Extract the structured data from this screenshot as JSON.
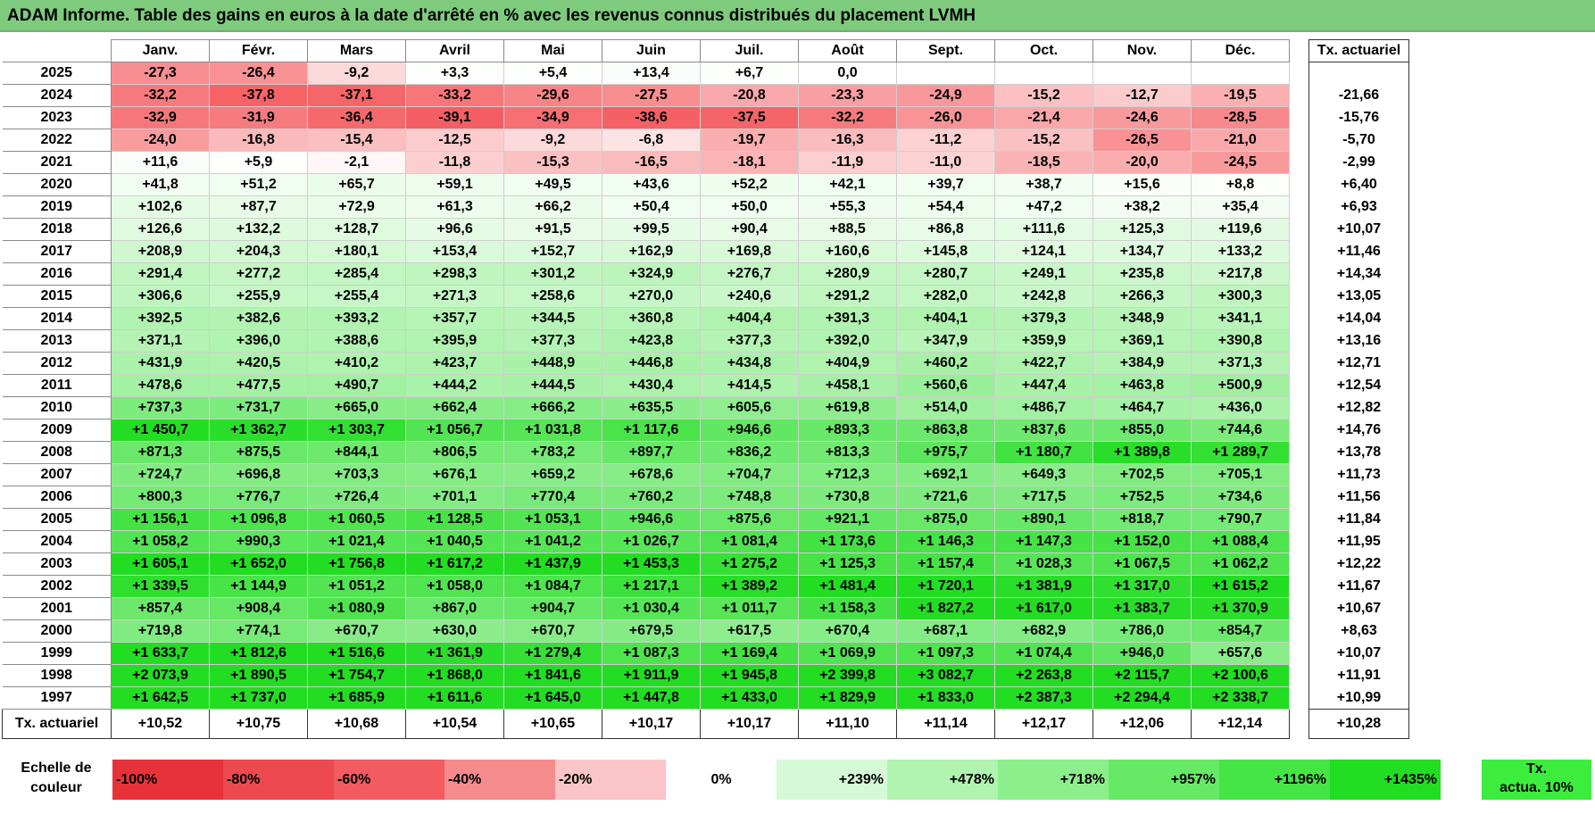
{
  "title": "ADAM Informe. Table des gains en euros à la date d'arrêté en % avec les revenus connus distribués du placement LVMH",
  "months": [
    "Janv.",
    "Févr.",
    "Mars",
    "Avril",
    "Mai",
    "Juin",
    "Juil.",
    "Août",
    "Sept.",
    "Oct.",
    "Nov.",
    "Déc."
  ],
  "actuarial_header": "Tx. actuariel",
  "rows": [
    {
      "year": "2025",
      "values": [
        "-27,3",
        "-26,4",
        "-9,2",
        "+3,3",
        "+5,4",
        "+13,4",
        "+6,7",
        "0,0",
        "",
        "",
        "",
        ""
      ],
      "actuarial": ""
    },
    {
      "year": "2024",
      "values": [
        "-32,2",
        "-37,8",
        "-37,1",
        "-33,2",
        "-29,6",
        "-27,5",
        "-20,8",
        "-23,3",
        "-24,9",
        "-15,2",
        "-12,7",
        "-19,5"
      ],
      "actuarial": "-21,66"
    },
    {
      "year": "2023",
      "values": [
        "-32,9",
        "-31,9",
        "-36,4",
        "-39,1",
        "-34,9",
        "-38,6",
        "-37,5",
        "-32,2",
        "-26,0",
        "-21,4",
        "-24,6",
        "-28,5"
      ],
      "actuarial": "-15,76"
    },
    {
      "year": "2022",
      "values": [
        "-24,0",
        "-16,8",
        "-15,4",
        "-12,5",
        "-9,2",
        "-6,8",
        "-19,7",
        "-16,3",
        "-11,2",
        "-15,2",
        "-26,5",
        "-21,0"
      ],
      "actuarial": "-5,70"
    },
    {
      "year": "2021",
      "values": [
        "+11,6",
        "+5,9",
        "-2,1",
        "-11,8",
        "-15,3",
        "-16,5",
        "-18,1",
        "-11,9",
        "-11,0",
        "-18,5",
        "-20,0",
        "-24,5"
      ],
      "actuarial": "-2,99"
    },
    {
      "year": "2020",
      "values": [
        "+41,8",
        "+51,2",
        "+65,7",
        "+59,1",
        "+49,5",
        "+43,6",
        "+52,2",
        "+42,1",
        "+39,7",
        "+38,7",
        "+15,6",
        "+8,8"
      ],
      "actuarial": "+6,40"
    },
    {
      "year": "2019",
      "values": [
        "+102,6",
        "+87,7",
        "+72,9",
        "+61,3",
        "+66,2",
        "+50,4",
        "+50,0",
        "+55,3",
        "+54,4",
        "+47,2",
        "+38,2",
        "+35,4"
      ],
      "actuarial": "+6,93"
    },
    {
      "year": "2018",
      "values": [
        "+126,6",
        "+132,2",
        "+128,7",
        "+96,6",
        "+91,5",
        "+99,5",
        "+90,4",
        "+88,5",
        "+86,8",
        "+111,6",
        "+125,3",
        "+119,6"
      ],
      "actuarial": "+10,07"
    },
    {
      "year": "2017",
      "values": [
        "+208,9",
        "+204,3",
        "+180,1",
        "+153,4",
        "+152,7",
        "+162,9",
        "+169,8",
        "+160,6",
        "+145,8",
        "+124,1",
        "+134,7",
        "+133,2"
      ],
      "actuarial": "+11,46"
    },
    {
      "year": "2016",
      "values": [
        "+291,4",
        "+277,2",
        "+285,4",
        "+298,3",
        "+301,2",
        "+324,9",
        "+276,7",
        "+280,9",
        "+280,7",
        "+249,1",
        "+235,8",
        "+217,8"
      ],
      "actuarial": "+14,34"
    },
    {
      "year": "2015",
      "values": [
        "+306,6",
        "+255,9",
        "+255,4",
        "+271,3",
        "+258,6",
        "+270,0",
        "+240,6",
        "+291,2",
        "+282,0",
        "+242,8",
        "+266,3",
        "+300,3"
      ],
      "actuarial": "+13,05"
    },
    {
      "year": "2014",
      "values": [
        "+392,5",
        "+382,6",
        "+393,2",
        "+357,7",
        "+344,5",
        "+360,8",
        "+404,4",
        "+391,3",
        "+404,1",
        "+379,3",
        "+348,9",
        "+341,1"
      ],
      "actuarial": "+14,04"
    },
    {
      "year": "2013",
      "values": [
        "+371,1",
        "+396,0",
        "+388,6",
        "+395,9",
        "+377,3",
        "+423,8",
        "+377,3",
        "+392,0",
        "+347,9",
        "+359,9",
        "+369,1",
        "+390,8"
      ],
      "actuarial": "+13,16"
    },
    {
      "year": "2012",
      "values": [
        "+431,9",
        "+420,5",
        "+410,2",
        "+423,7",
        "+448,9",
        "+446,8",
        "+434,8",
        "+404,9",
        "+460,2",
        "+422,7",
        "+384,9",
        "+371,3"
      ],
      "actuarial": "+12,71"
    },
    {
      "year": "2011",
      "values": [
        "+478,6",
        "+477,5",
        "+490,7",
        "+444,2",
        "+444,5",
        "+430,4",
        "+414,5",
        "+458,1",
        "+560,6",
        "+447,4",
        "+463,8",
        "+500,9"
      ],
      "actuarial": "+12,54"
    },
    {
      "year": "2010",
      "values": [
        "+737,3",
        "+731,7",
        "+665,0",
        "+662,4",
        "+666,2",
        "+635,5",
        "+605,6",
        "+619,8",
        "+514,0",
        "+486,7",
        "+464,7",
        "+436,0"
      ],
      "actuarial": "+12,82"
    },
    {
      "year": "2009",
      "values": [
        "+1 450,7",
        "+1 362,7",
        "+1 303,7",
        "+1 056,7",
        "+1 031,8",
        "+1 117,6",
        "+946,6",
        "+893,3",
        "+863,8",
        "+837,6",
        "+855,0",
        "+744,6"
      ],
      "actuarial": "+14,76"
    },
    {
      "year": "2008",
      "values": [
        "+871,3",
        "+875,5",
        "+844,1",
        "+806,5",
        "+783,2",
        "+897,7",
        "+836,2",
        "+813,3",
        "+975,7",
        "+1 180,7",
        "+1 389,8",
        "+1 289,7"
      ],
      "actuarial": "+13,78"
    },
    {
      "year": "2007",
      "values": [
        "+724,7",
        "+696,8",
        "+703,3",
        "+676,1",
        "+659,2",
        "+678,6",
        "+704,7",
        "+712,3",
        "+692,1",
        "+649,3",
        "+702,5",
        "+705,1"
      ],
      "actuarial": "+11,73"
    },
    {
      "year": "2006",
      "values": [
        "+800,3",
        "+776,7",
        "+726,4",
        "+701,1",
        "+770,4",
        "+760,2",
        "+748,8",
        "+730,8",
        "+721,6",
        "+717,5",
        "+752,5",
        "+734,6"
      ],
      "actuarial": "+11,56"
    },
    {
      "year": "2005",
      "values": [
        "+1 156,1",
        "+1 096,8",
        "+1 060,5",
        "+1 128,5",
        "+1 053,1",
        "+946,6",
        "+875,6",
        "+921,1",
        "+875,0",
        "+890,1",
        "+818,7",
        "+790,7"
      ],
      "actuarial": "+11,84"
    },
    {
      "year": "2004",
      "values": [
        "+1 058,2",
        "+990,3",
        "+1 021,4",
        "+1 040,5",
        "+1 041,2",
        "+1 026,7",
        "+1 081,4",
        "+1 173,6",
        "+1 146,3",
        "+1 147,3",
        "+1 152,0",
        "+1 088,4"
      ],
      "actuarial": "+11,95"
    },
    {
      "year": "2003",
      "values": [
        "+1 605,1",
        "+1 652,0",
        "+1 756,8",
        "+1 617,2",
        "+1 437,9",
        "+1 453,3",
        "+1 275,2",
        "+1 125,3",
        "+1 157,4",
        "+1 028,3",
        "+1 067,5",
        "+1 062,2"
      ],
      "actuarial": "+12,22"
    },
    {
      "year": "2002",
      "values": [
        "+1 339,5",
        "+1 144,9",
        "+1 051,2",
        "+1 058,0",
        "+1 084,7",
        "+1 217,1",
        "+1 389,2",
        "+1 481,4",
        "+1 720,1",
        "+1 381,9",
        "+1 317,0",
        "+1 615,2"
      ],
      "actuarial": "+11,67"
    },
    {
      "year": "2001",
      "values": [
        "+857,4",
        "+908,4",
        "+1 080,9",
        "+867,0",
        "+904,7",
        "+1 030,4",
        "+1 011,7",
        "+1 158,3",
        "+1 827,2",
        "+1 617,0",
        "+1 383,7",
        "+1 370,9"
      ],
      "actuarial": "+10,67"
    },
    {
      "year": "2000",
      "values": [
        "+719,8",
        "+774,1",
        "+670,7",
        "+630,0",
        "+670,7",
        "+679,5",
        "+617,5",
        "+670,4",
        "+687,1",
        "+682,9",
        "+786,0",
        "+854,7"
      ],
      "actuarial": "+8,63"
    },
    {
      "year": "1999",
      "values": [
        "+1 633,7",
        "+1 812,6",
        "+1 516,6",
        "+1 361,9",
        "+1 279,4",
        "+1 087,3",
        "+1 169,4",
        "+1 069,9",
        "+1 097,3",
        "+1 074,4",
        "+946,0",
        "+657,6"
      ],
      "actuarial": "+10,07"
    },
    {
      "year": "1998",
      "values": [
        "+2 073,9",
        "+1 890,5",
        "+1 754,7",
        "+1 868,0",
        "+1 841,6",
        "+1 911,9",
        "+1 945,8",
        "+2 399,8",
        "+3 082,7",
        "+2 263,8",
        "+2 115,7",
        "+2 100,6"
      ],
      "actuarial": "+11,91"
    },
    {
      "year": "1997",
      "values": [
        "+1 642,5",
        "+1 737,0",
        "+1 685,9",
        "+1 611,6",
        "+1 645,0",
        "+1 447,8",
        "+1 433,0",
        "+1 829,9",
        "+1 833,0",
        "+2 387,3",
        "+2 294,4",
        "+2 338,7"
      ],
      "actuarial": "+10,99"
    }
  ],
  "footer": {
    "label": "Tx. actuariel",
    "values": [
      "+10,52",
      "+10,75",
      "+10,68",
      "+10,54",
      "+10,65",
      "+10,17",
      "+10,17",
      "+11,10",
      "+11,14",
      "+12,17",
      "+12,06",
      "+12,14"
    ],
    "overall": "+10,28"
  },
  "legend": {
    "label_line1": "Echelle de",
    "label_line2": "couleur",
    "steps": [
      {
        "text": "-100%",
        "color": "#e8323a",
        "align": "left"
      },
      {
        "text": "-80%",
        "color": "#ec4a4f",
        "align": "left"
      },
      {
        "text": "-60%",
        "color": "#f25b5f",
        "align": "left"
      },
      {
        "text": "-40%",
        "color": "#f68b8e",
        "align": "left"
      },
      {
        "text": "-20%",
        "color": "#fbc5c7",
        "align": "left"
      },
      {
        "text": "0%",
        "color": "#ffffff",
        "align": "center"
      },
      {
        "text": "+239%",
        "color": "#d6f9d6",
        "align": "right"
      },
      {
        "text": "+478%",
        "color": "#b0f4b0",
        "align": "right"
      },
      {
        "text": "+718%",
        "color": "#8cef8c",
        "align": "right"
      },
      {
        "text": "+957%",
        "color": "#66ea66",
        "align": "right"
      },
      {
        "text": "+1196%",
        "color": "#45e545",
        "align": "right"
      },
      {
        "text": "+1435%",
        "color": "#22dd22",
        "align": "right"
      }
    ],
    "actual_line1": "Tx.",
    "actual_line2": "actua. 10%"
  }
}
